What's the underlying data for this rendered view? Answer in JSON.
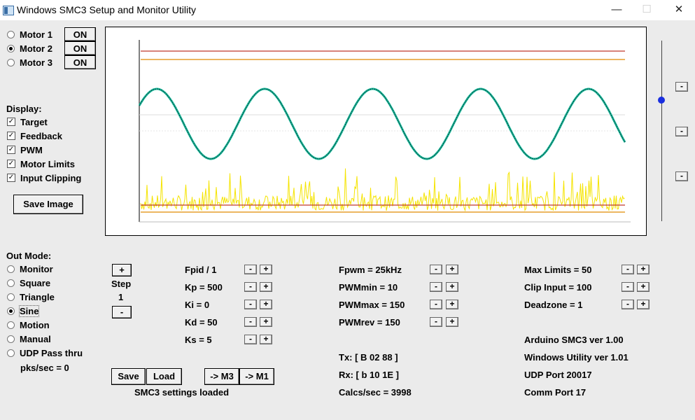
{
  "window": {
    "title": "Windows SMC3 Setup and Monitor Utility",
    "minimize": "—",
    "maximize": "☐",
    "close": "✕"
  },
  "motors": [
    {
      "label": "Motor 1",
      "selected": false,
      "button": "ON"
    },
    {
      "label": "Motor 2",
      "selected": true,
      "button": "ON"
    },
    {
      "label": "Motor 3",
      "selected": false,
      "button": "ON"
    }
  ],
  "display": {
    "heading": "Display:",
    "items": [
      {
        "label": "Target",
        "checked": true
      },
      {
        "label": "Feedback",
        "checked": true
      },
      {
        "label": "PWM",
        "checked": true
      },
      {
        "label": "Motor Limits",
        "checked": true
      },
      {
        "label": "Input Clipping",
        "checked": true
      }
    ],
    "save_image": "Save Image"
  },
  "outmode": {
    "heading": "Out Mode:",
    "items": [
      {
        "label": "Monitor",
        "selected": false
      },
      {
        "label": "Square",
        "selected": false
      },
      {
        "label": "Triangle",
        "selected": false
      },
      {
        "label": "Sine",
        "selected": true
      },
      {
        "label": "Motion",
        "selected": false
      },
      {
        "label": "Manual",
        "selected": false
      },
      {
        "label": "UDP Pass thru",
        "selected": false
      }
    ],
    "pks": "pks/sec = 0"
  },
  "step": {
    "plus": "+",
    "label": "Step",
    "value": "1",
    "minus": "-"
  },
  "pid": [
    "Fpid / 1",
    "Kp = 500",
    "Ki = 0",
    "Kd = 50",
    "Ks = 5"
  ],
  "pwm": [
    "Fpwm = 25kHz",
    "PWMmin = 10",
    "PWMmax = 150",
    "PWMrev = 150"
  ],
  "limits": [
    "Max Limits = 50",
    "Clip Input = 100",
    "Deadzone = 1"
  ],
  "comm": {
    "tx": "Tx: [ B 02 88 ]",
    "rx": "Rx: [ b 10 1E ]",
    "calcs": "Calcs/sec = 3998"
  },
  "info": [
    "Arduino SMC3 ver 1.00",
    "Windows Utility ver 1.01",
    "UDP Port 20017",
    "Comm Port 17"
  ],
  "buttons": {
    "save": "Save",
    "load": "Load",
    "m3": "-> M3",
    "m1": "-> M1"
  },
  "status": "SMC3 settings loaded",
  "spin": {
    "minus": "-",
    "plus": "+"
  },
  "colors": {
    "limit_red": "#c0392b",
    "clip_orange": "#e08a00",
    "sine_teal": "#1abc9c",
    "pwm_yellow": "#f5e400",
    "slider_knob": "#1a2fe0"
  },
  "chart_data": {
    "type": "line",
    "series": [
      {
        "role": "target",
        "shape": "sine",
        "cycles": 4.5
      },
      {
        "role": "feedback",
        "shape": "sine",
        "cycles": 4.5
      },
      {
        "role": "pwm",
        "shape": "noise"
      }
    ],
    "grid": false
  }
}
